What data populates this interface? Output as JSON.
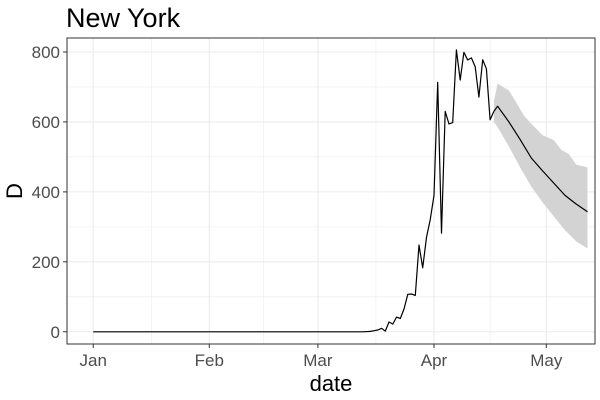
{
  "chart_data": {
    "type": "line",
    "title": "New York",
    "xlabel": "date",
    "ylabel": "D",
    "x_ticks": [
      {
        "label": "Jan",
        "date": "2020-01-01"
      },
      {
        "label": "Feb",
        "date": "2020-02-01"
      },
      {
        "label": "Mar",
        "date": "2020-03-01"
      },
      {
        "label": "Apr",
        "date": "2020-04-01"
      },
      {
        "label": "May",
        "date": "2020-05-01"
      }
    ],
    "y_ticks": [
      0,
      200,
      400,
      600,
      800
    ],
    "xlim": [
      "2019-12-25",
      "2020-05-14"
    ],
    "ylim": [
      -35,
      840
    ],
    "grid": true,
    "colors": {
      "line": "#000000",
      "band": "#d3d3d3",
      "grid": "#ebebeb",
      "border": "#333333"
    },
    "series": [
      {
        "kind": "observed",
        "points": [
          {
            "x": "2020-01-01",
            "y": 0
          },
          {
            "x": "2020-01-15",
            "y": 0
          },
          {
            "x": "2020-02-01",
            "y": 0
          },
          {
            "x": "2020-02-15",
            "y": 0
          },
          {
            "x": "2020-03-01",
            "y": 0
          },
          {
            "x": "2020-03-13",
            "y": 0
          },
          {
            "x": "2020-03-15",
            "y": 1
          },
          {
            "x": "2020-03-16",
            "y": 3
          },
          {
            "x": "2020-03-17",
            "y": 5
          },
          {
            "x": "2020-03-18",
            "y": 10
          },
          {
            "x": "2020-03-19",
            "y": 2
          },
          {
            "x": "2020-03-20",
            "y": 28
          },
          {
            "x": "2020-03-21",
            "y": 22
          },
          {
            "x": "2020-03-22",
            "y": 42
          },
          {
            "x": "2020-03-23",
            "y": 38
          },
          {
            "x": "2020-03-24",
            "y": 65
          },
          {
            "x": "2020-03-25",
            "y": 107
          },
          {
            "x": "2020-03-26",
            "y": 108
          },
          {
            "x": "2020-03-27",
            "y": 104
          },
          {
            "x": "2020-03-28",
            "y": 248
          },
          {
            "x": "2020-03-29",
            "y": 183
          },
          {
            "x": "2020-03-30",
            "y": 270
          },
          {
            "x": "2020-03-31",
            "y": 320
          },
          {
            "x": "2020-04-01",
            "y": 390
          },
          {
            "x": "2020-04-02",
            "y": 713
          },
          {
            "x": "2020-04-03",
            "y": 282
          },
          {
            "x": "2020-04-04",
            "y": 630
          },
          {
            "x": "2020-04-05",
            "y": 594
          },
          {
            "x": "2020-04-06",
            "y": 598
          },
          {
            "x": "2020-04-07",
            "y": 806
          },
          {
            "x": "2020-04-08",
            "y": 720
          },
          {
            "x": "2020-04-09",
            "y": 799
          },
          {
            "x": "2020-04-10",
            "y": 777
          },
          {
            "x": "2020-04-11",
            "y": 783
          },
          {
            "x": "2020-04-12",
            "y": 758
          },
          {
            "x": "2020-04-13",
            "y": 671
          },
          {
            "x": "2020-04-14",
            "y": 778
          },
          {
            "x": "2020-04-15",
            "y": 752
          },
          {
            "x": "2020-04-16",
            "y": 606
          },
          {
            "x": "2020-04-17",
            "y": 630
          }
        ]
      },
      {
        "kind": "forecast",
        "points": [
          {
            "x": "2020-04-17",
            "y": 630
          },
          {
            "x": "2020-04-18",
            "y": 645
          },
          {
            "x": "2020-04-21",
            "y": 600
          },
          {
            "x": "2020-04-24",
            "y": 550
          },
          {
            "x": "2020-04-27",
            "y": 497
          },
          {
            "x": "2020-04-30",
            "y": 460
          },
          {
            "x": "2020-05-03",
            "y": 425
          },
          {
            "x": "2020-05-06",
            "y": 390
          },
          {
            "x": "2020-05-09",
            "y": 365
          },
          {
            "x": "2020-05-12",
            "y": 343
          }
        ],
        "upper": [
          {
            "x": "2020-04-17",
            "y": 660
          },
          {
            "x": "2020-04-18",
            "y": 710
          },
          {
            "x": "2020-04-21",
            "y": 690
          },
          {
            "x": "2020-04-23",
            "y": 655
          },
          {
            "x": "2020-04-25",
            "y": 618
          },
          {
            "x": "2020-04-27",
            "y": 595
          },
          {
            "x": "2020-04-30",
            "y": 562
          },
          {
            "x": "2020-05-03",
            "y": 548
          },
          {
            "x": "2020-05-05",
            "y": 520
          },
          {
            "x": "2020-05-07",
            "y": 508
          },
          {
            "x": "2020-05-09",
            "y": 478
          },
          {
            "x": "2020-05-12",
            "y": 470
          }
        ],
        "lower": [
          {
            "x": "2020-04-17",
            "y": 600
          },
          {
            "x": "2020-04-18",
            "y": 585
          },
          {
            "x": "2020-04-21",
            "y": 530
          },
          {
            "x": "2020-04-24",
            "y": 470
          },
          {
            "x": "2020-04-27",
            "y": 415
          },
          {
            "x": "2020-04-30",
            "y": 370
          },
          {
            "x": "2020-05-03",
            "y": 330
          },
          {
            "x": "2020-05-06",
            "y": 290
          },
          {
            "x": "2020-05-09",
            "y": 258
          },
          {
            "x": "2020-05-12",
            "y": 238
          }
        ]
      }
    ]
  }
}
